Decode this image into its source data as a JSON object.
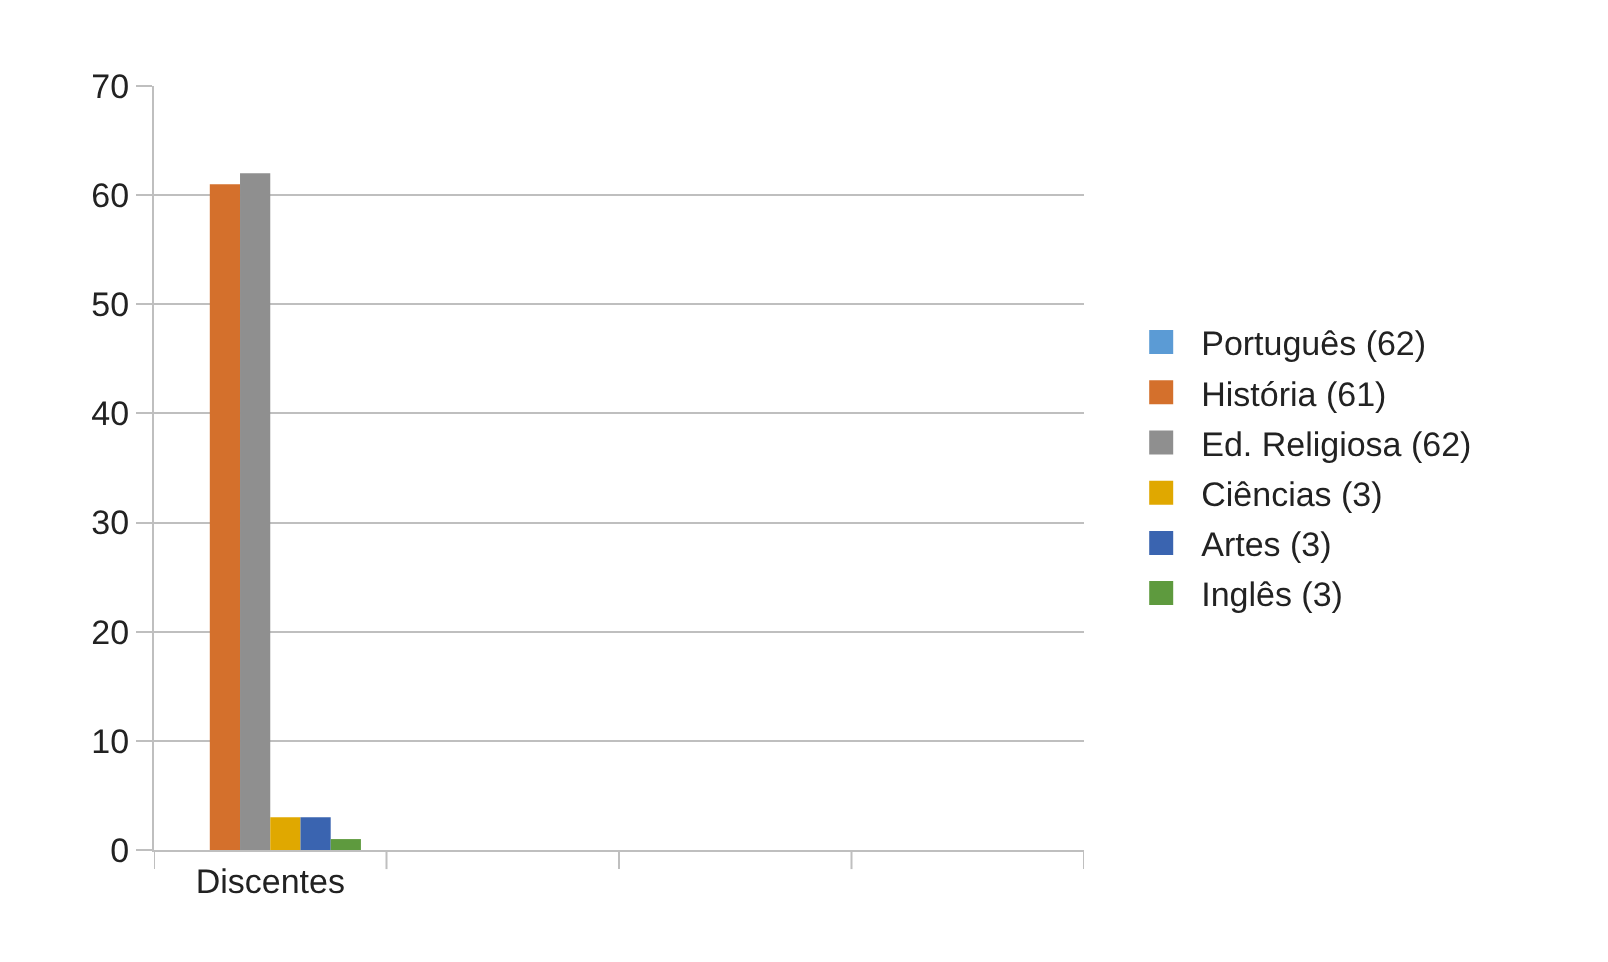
{
  "chart_data": {
    "type": "bar",
    "categories": [
      "Discentes",
      null,
      null,
      null
    ],
    "series": [
      {
        "name": "Português (62)",
        "color": "#5b9bd5",
        "values": [
          null,
          null,
          null,
          null
        ]
      },
      {
        "name": "História (61)",
        "color": "#d4702c",
        "values": [
          61,
          null,
          null,
          null
        ]
      },
      {
        "name": "Ed. Religiosa (62)",
        "color": "#8f8f8f",
        "values": [
          62,
          null,
          null,
          null
        ]
      },
      {
        "name": "Ciências (3)",
        "color": "#e0a800",
        "values": [
          3,
          null,
          null,
          null
        ]
      },
      {
        "name": "Artes (3)",
        "color": "#3a64b0",
        "values": [
          3,
          null,
          null,
          null
        ]
      },
      {
        "name": "Inglês (3)",
        "color": "#5e9a3e",
        "values": [
          1,
          null,
          null,
          null
        ]
      }
    ],
    "ylim": [
      0,
      70
    ],
    "yticks": [
      0,
      10,
      20,
      30,
      40,
      50,
      60,
      70
    ],
    "grid": "y",
    "legend": "right"
  }
}
